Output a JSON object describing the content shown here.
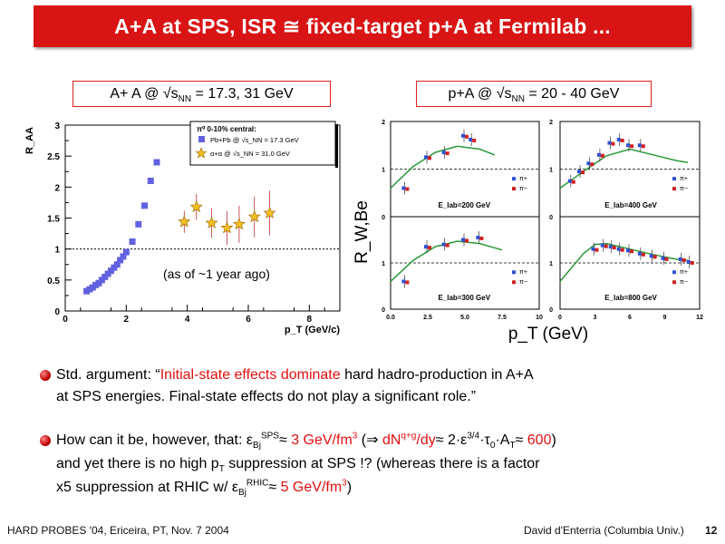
{
  "slide": {
    "title": "A+A at SPS, ISR ≅ fixed-target p+A at Fermilab ...",
    "left_label": {
      "pre": "A+ A @ √s",
      "sub": "NN",
      "post": " = 17.3, 31 GeV"
    },
    "right_label": {
      "pre": "p+A @ √s",
      "sub": "NN",
      "post": " = 20 - 40 GeV"
    },
    "note": "(as of ~1 year ago)",
    "footer_left": "HARD PROBES '04, Ericeira, PT, Nov. 7 2004",
    "footer_right": "David d'Enterria (Columbia Univ.)",
    "page_number": "12"
  },
  "bullets": {
    "b1": {
      "pre": "Std. argument: “",
      "red": "Initial-state effects dominate",
      "post1": " hard hadro-production in A+A",
      "line2": "at SPS energies. Final-state effects do not play a significant role.”"
    },
    "b2": {
      "l1_a": "How can it be, however, that: ε",
      "l1_sub1": "Bj",
      "l1_sup1": "SPS",
      "l1_b": "≈ ",
      "l1_red1": "3 GeV/fm",
      "l1_sup2": "3",
      "l1_c": " (⇒ ",
      "l1_red2": "dN",
      "l1_sup3": "q+g",
      "l1_red3": "/dy",
      "l1_d": "≈ 2·ε",
      "l1_sup4": "3/4",
      "l1_e": "·τ",
      "l1_sub2": "0",
      "l1_f": "·A",
      "l1_sub3": "T",
      "l1_g": "≈ ",
      "l1_red4": "600",
      "l1_h": ")",
      "l2_a": "and yet there is no high p",
      "l2_sub": "T",
      "l2_b": " suppression at SPS !? (whereas there is a factor",
      "l3_a": "x5 suppression at RHIC w/ ε",
      "l3_sub": "Bj",
      "l3_sup": "RHIC",
      "l3_b": "≈ ",
      "l3_red": "5 GeV/fm",
      "l3_sup2": "3",
      "l3_c": ")"
    }
  },
  "chart_data": [
    {
      "type": "scatter",
      "ylabel": "R_AA",
      "xlabel": "p_T (GeV/c)",
      "xlim": [
        0,
        9
      ],
      "ylim": [
        0,
        3
      ],
      "xticks": [
        0,
        2,
        4,
        6,
        8
      ],
      "yticks": [
        0,
        0.5,
        1,
        1.5,
        2,
        2.5,
        3
      ],
      "legend": {
        "header": "π⁰ 0-10% central:",
        "entries": [
          "Pb+Pb @ √s_NN = 17.3 GeV",
          "α+α @ √s_NN = 31.0 GeV"
        ],
        "placement": "top-right"
      },
      "series": [
        {
          "name": "Pb+Pb @ √s_NN = 17.3 GeV",
          "marker": "square",
          "color": "#6060e0",
          "x": [
            0.7,
            0.8,
            0.9,
            1.0,
            1.1,
            1.2,
            1.3,
            1.4,
            1.5,
            1.6,
            1.7,
            1.8,
            1.9,
            2.0,
            2.2,
            2.4,
            2.6,
            2.8,
            3.0
          ],
          "y": [
            0.32,
            0.35,
            0.38,
            0.42,
            0.45,
            0.5,
            0.55,
            0.6,
            0.65,
            0.7,
            0.75,
            0.82,
            0.88,
            0.95,
            1.12,
            1.4,
            1.7,
            2.1,
            2.4
          ]
        },
        {
          "name": "α+α @ √s_NN = 31.0 GeV",
          "marker": "star",
          "color": "#f0c020",
          "x": [
            3.9,
            4.3,
            4.8,
            5.3,
            5.7,
            6.2,
            6.7
          ],
          "y": [
            1.44,
            1.68,
            1.42,
            1.34,
            1.4,
            1.52,
            1.58
          ]
        }
      ],
      "reference_line": 1
    },
    {
      "type": "scatter",
      "ylabel": "R_W,Be",
      "xlabel": "p_T (GeV)",
      "panels": [
        {
          "label": "E_lab=200 GeV",
          "xlim": [
            0,
            10
          ],
          "ylim": [
            0,
            2
          ],
          "yticks": [
            0,
            1,
            2
          ]
        },
        {
          "label": "E_lab=400 GeV",
          "xlim": [
            0,
            12
          ],
          "ylim": [
            0,
            2
          ],
          "yticks": [
            0,
            1,
            2
          ]
        },
        {
          "label": "E_lab=300 GeV",
          "xlim": [
            0,
            10
          ],
          "ylim": [
            0,
            2
          ],
          "yticks": [
            0,
            1,
            2
          ],
          "xticks": [
            "0.0",
            "2.5",
            "5.0",
            "7.5",
            "10"
          ]
        },
        {
          "label": "E_lab=800 GeV",
          "xlim": [
            0,
            12
          ],
          "ylim": [
            0,
            2
          ],
          "yticks": [
            0,
            1,
            2
          ],
          "xticks": [
            "0",
            "3",
            "6",
            "9",
            "12"
          ]
        }
      ],
      "legend": [
        "π+",
        "π−"
      ]
    }
  ]
}
